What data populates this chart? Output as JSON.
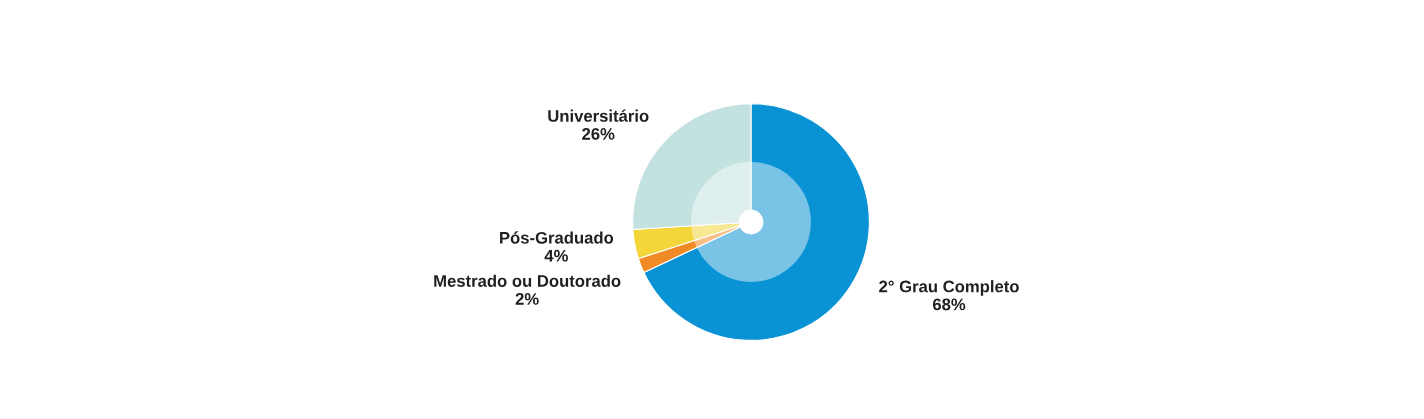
{
  "chart_data": {
    "type": "donut",
    "categories": [
      "2° Grau Completo",
      "Mestrado ou Doutorado",
      "Pós-Graduado",
      "Universitário"
    ],
    "values": [
      68,
      2,
      4,
      26
    ],
    "colors": [
      "#0a93d4",
      "#f08a24",
      "#f4d53a",
      "#c3e2df"
    ],
    "value_labels": [
      "68%",
      "2%",
      "4%",
      "26%"
    ],
    "legend": false
  }
}
